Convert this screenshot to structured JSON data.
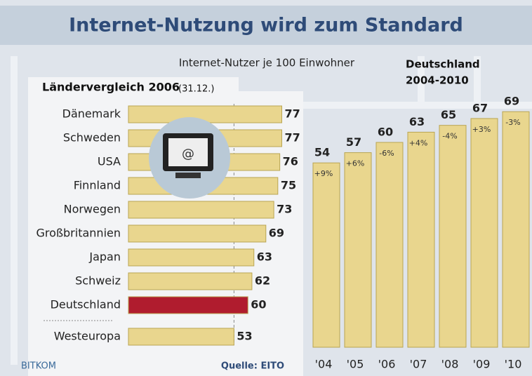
{
  "title": "Internet-Nutzung wird zum Standard",
  "subtitle": "Internet-Nutzer je 100 Einwohner",
  "source": "Quelle: EITO",
  "logo": "BITKOM",
  "chart_data": [
    {
      "type": "hbar",
      "title": "Ländervergleich 2006",
      "subtitle": "(31.12.)",
      "categories": [
        "Dänemark",
        "Schweden",
        "USA",
        "Finnland",
        "Norwegen",
        "Großbritannien",
        "Japan",
        "Schweiz",
        "Deutschland",
        "Westeuropa"
      ],
      "values": [
        77,
        77,
        76,
        75,
        73,
        69,
        63,
        62,
        60,
        53
      ],
      "colors": [
        "#e9d68e",
        "#e9d68e",
        "#e9d68e",
        "#e9d68e",
        "#e9d68e",
        "#e9d68e",
        "#e9d68e",
        "#e9d68e",
        "#b01c2e",
        "#e9d68e"
      ],
      "xlim": [
        0,
        80
      ]
    },
    {
      "type": "bar",
      "title": "Deutschland",
      "subtitle": "2004-2010",
      "categories": [
        "'04",
        "'05",
        "'06",
        "'07",
        "'08",
        "'09",
        "'10"
      ],
      "values": [
        54,
        57,
        60,
        63,
        65,
        67,
        69
      ],
      "annotations": [
        "+9%",
        "+6%",
        "-6%",
        "+4%",
        "-4%",
        "+3%",
        "-3%"
      ],
      "color": "#e9d68e",
      "ylim": [
        0,
        75
      ]
    }
  ]
}
